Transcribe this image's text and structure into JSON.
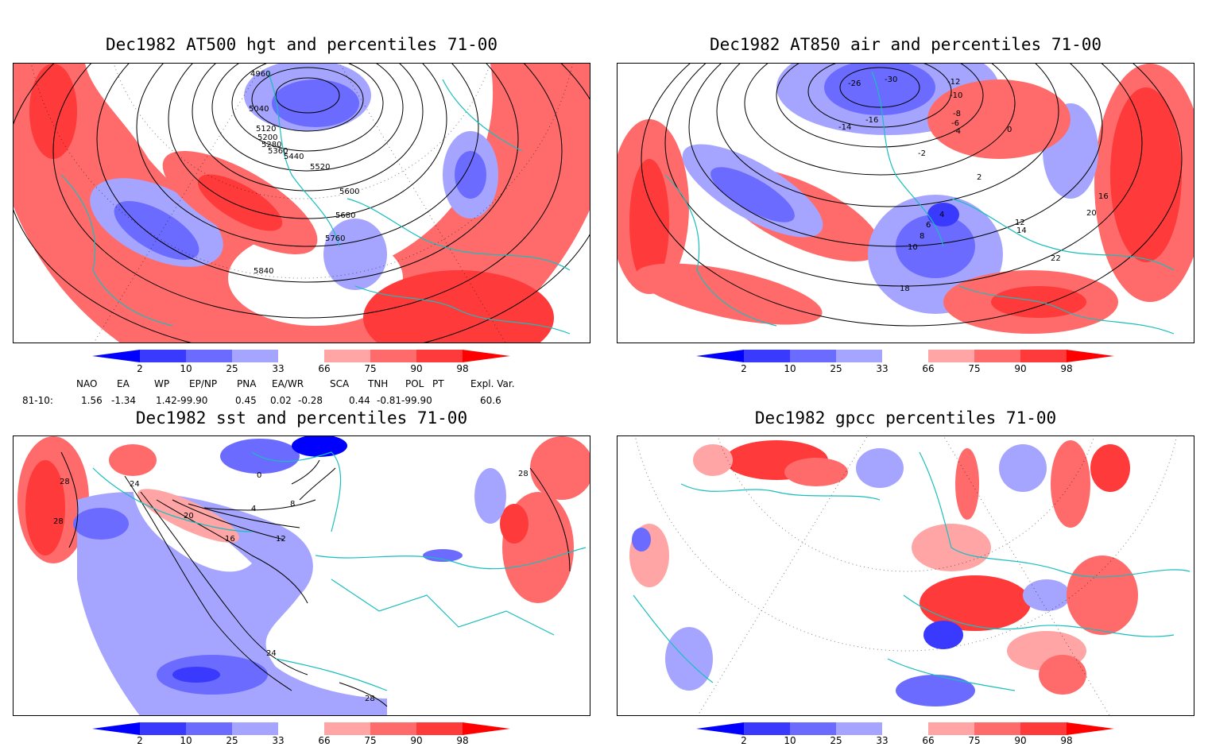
{
  "panels": [
    {
      "title": "Dec1982 AT500 hgt and percentiles 71-00",
      "contour_labels": [
        "4960",
        "5040",
        "5120",
        "5200",
        "5280",
        "5360",
        "5440",
        "5520",
        "5600",
        "5680",
        "5760",
        "5840"
      ]
    },
    {
      "title": "Dec1982 AT850 air and percentiles 71-00",
      "contour_labels": [
        "-26",
        "-30",
        "-12",
        "-10",
        "-8",
        "-6",
        "-4",
        "-14",
        "-16",
        "0",
        "-2",
        "2",
        "4",
        "6",
        "8",
        "10",
        "12",
        "14",
        "16",
        "18",
        "20",
        "22"
      ]
    },
    {
      "title": "Dec1982 sst and percentiles 71-00",
      "contour_labels": [
        "28",
        "24",
        "20",
        "16",
        "12",
        "8",
        "4",
        "0"
      ]
    },
    {
      "title": "Dec1982 gpcc percentiles 71-00",
      "contour_labels": []
    }
  ],
  "colorbar": {
    "ticks": [
      "2",
      "10",
      "25",
      "33",
      "66",
      "75",
      "90",
      "98"
    ],
    "colors": {
      "below_2": "#0000ff",
      "2_10": "#3a3aff",
      "10_25": "#6b6bff",
      "25_33": "#a5a5ff",
      "33_66": "#ffffff",
      "66_75": "#ffa5a5",
      "75_90": "#ff6b6b",
      "90_98": "#ff3a3a",
      "above_98": "#ff0000"
    }
  },
  "indices": {
    "header": [
      "NAO",
      "EA",
      "WP",
      "EP/NP",
      "PNA",
      "EA/WR",
      "SCA",
      "TNH",
      "POL",
      "PT",
      "Expl. Var."
    ],
    "row_label": "81-10:",
    "values": [
      "1.56",
      "-1.34",
      "1.42-99.90",
      "0.45",
      "0.02",
      "-0.28",
      "0.44",
      "-0.81-99.90",
      "60.6"
    ]
  },
  "map_colors": {
    "coast": "#19bebe",
    "contour": "#000000"
  }
}
